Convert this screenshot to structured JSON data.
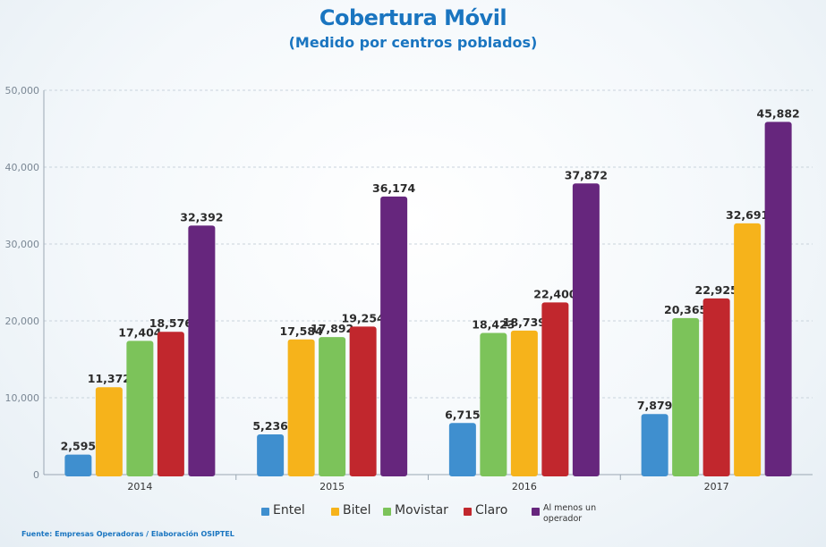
{
  "title": "Cobertura Móvil",
  "subtitle": "(Medido por centros poblados)",
  "source": "Fuente: Empresas Operadoras / Elaboración OSIPTEL",
  "chart_data": {
    "type": "bar",
    "title": "Cobertura Móvil",
    "subtitle": "(Medido por centros poblados)",
    "categories": [
      "2014",
      "2015",
      "2016",
      "2017"
    ],
    "ylim": [
      0,
      50000
    ],
    "yticks": [
      "0",
      "10,000",
      "20,000",
      "30,000",
      "40,000",
      "50,000"
    ],
    "grid": true,
    "legend_position": "bottom",
    "series_by_category": [
      [
        {
          "name": "Entel",
          "value": 2595,
          "label": "2,595",
          "color": "#3f8fcf"
        },
        {
          "name": "Bitel",
          "value": 11372,
          "label": "11,372",
          "color": "#f6b31b"
        },
        {
          "name": "Movistar",
          "value": 17404,
          "label": "17,404",
          "color": "#7cc35a"
        },
        {
          "name": "Claro",
          "value": 18576,
          "label": "18,576",
          "color": "#c1272d"
        },
        {
          "name": "Al menos un operador",
          "value": 32392,
          "label": "32,392",
          "color": "#66267d"
        }
      ],
      [
        {
          "name": "Entel",
          "value": 5236,
          "label": "5,236",
          "color": "#3f8fcf"
        },
        {
          "name": "Bitel",
          "value": 17584,
          "label": "17,584",
          "color": "#f6b31b"
        },
        {
          "name": "Movistar",
          "value": 17892,
          "label": "17,892",
          "color": "#7cc35a"
        },
        {
          "name": "Claro",
          "value": 19254,
          "label": "19,254",
          "color": "#c1272d"
        },
        {
          "name": "Al menos un operador",
          "value": 36174,
          "label": "36,174",
          "color": "#66267d"
        }
      ],
      [
        {
          "name": "Entel",
          "value": 6715,
          "label": "6,715",
          "color": "#3f8fcf"
        },
        {
          "name": "Movistar",
          "value": 18423,
          "label": "18,423",
          "color": "#7cc35a"
        },
        {
          "name": "Bitel",
          "value": 18739,
          "label": "18,739",
          "color": "#f6b31b"
        },
        {
          "name": "Claro",
          "value": 22400,
          "label": "22,400",
          "color": "#c1272d"
        },
        {
          "name": "Al menos un operador",
          "value": 37872,
          "label": "37,872",
          "color": "#66267d"
        }
      ],
      [
        {
          "name": "Entel",
          "value": 7879,
          "label": "7,879",
          "color": "#3f8fcf"
        },
        {
          "name": "Movistar",
          "value": 20365,
          "label": "20,365",
          "color": "#7cc35a"
        },
        {
          "name": "Claro",
          "value": 22925,
          "label": "22,925",
          "color": "#c1272d"
        },
        {
          "name": "Bitel",
          "value": 32691,
          "label": "32,691",
          "color": "#f6b31b"
        },
        {
          "name": "Al menos un operador",
          "value": 45882,
          "label": "45,882",
          "color": "#66267d"
        }
      ]
    ],
    "legend": [
      {
        "name": "Entel",
        "color": "#3f8fcf"
      },
      {
        "name": "Bitel",
        "color": "#f6b31b"
      },
      {
        "name": "Movistar",
        "color": "#7cc35a"
      },
      {
        "name": "Claro",
        "color": "#c1272d"
      },
      {
        "name": "Al menos un operador",
        "color": "#66267d"
      }
    ]
  }
}
